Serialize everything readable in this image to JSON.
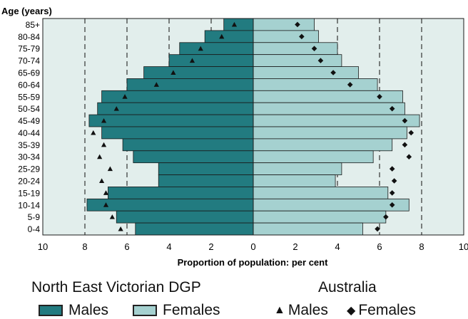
{
  "chart_data": {
    "type": "bar",
    "orientation": "horizontal",
    "ylabel": "Age (years)",
    "xlabel": "Proportion of population: per cent",
    "xlim": [
      -10,
      10
    ],
    "x_ticks": [
      -10,
      -8,
      -6,
      -4,
      -2,
      0,
      2,
      4,
      6,
      8,
      10
    ],
    "x_tick_labels": [
      "10",
      "8",
      "6",
      "4",
      "2",
      "0",
      "2",
      "4",
      "6",
      "8",
      "10"
    ],
    "gridlines_at": [
      -8,
      -6,
      -4,
      -2,
      2,
      4,
      6,
      8
    ],
    "categories": [
      "85+",
      "80-84",
      "75-79",
      "70-74",
      "65-69",
      "60-64",
      "55-59",
      "50-54",
      "45-49",
      "40-44",
      "35-39",
      "30-34",
      "25-29",
      "20-24",
      "15-19",
      "10-14",
      "5-9",
      "0-4"
    ],
    "series": [
      {
        "name": "Males",
        "group": "North East Victorian DGP",
        "color": "#227b80",
        "marker": "bar",
        "values": [
          1.4,
          2.3,
          3.5,
          4.0,
          5.2,
          6.0,
          7.2,
          7.4,
          7.8,
          7.2,
          6.2,
          5.7,
          4.5,
          4.5,
          6.9,
          7.9,
          6.5,
          5.6
        ]
      },
      {
        "name": "Females",
        "group": "North East Victorian DGP",
        "color": "#a5d1d0",
        "marker": "bar",
        "values": [
          2.9,
          3.1,
          4.0,
          4.2,
          5.0,
          5.9,
          7.1,
          7.2,
          7.9,
          7.3,
          6.6,
          5.7,
          4.2,
          3.9,
          6.4,
          7.4,
          6.3,
          5.2
        ]
      },
      {
        "name": "Males",
        "group": "Australia",
        "color": "#111111",
        "marker": "triangle",
        "values": [
          0.9,
          1.5,
          2.5,
          2.9,
          3.8,
          4.6,
          6.1,
          6.5,
          7.1,
          7.6,
          7.1,
          7.3,
          6.8,
          7.2,
          7.0,
          7.0,
          6.7,
          6.3
        ]
      },
      {
        "name": "Females",
        "group": "Australia",
        "color": "#111111",
        "marker": "diamond",
        "values": [
          2.1,
          2.3,
          2.9,
          3.2,
          3.8,
          4.6,
          6.0,
          6.6,
          7.2,
          7.5,
          7.2,
          7.4,
          6.6,
          6.7,
          6.6,
          6.6,
          6.3,
          5.9
        ]
      }
    ],
    "grid": true
  },
  "legend": {
    "dgp_title": "North East Victorian DGP",
    "aus_title": "Australia",
    "dgp_males": "Males",
    "dgp_females": "Females",
    "aus_males": "Males",
    "aus_females": "Females",
    "triangle_glyph": "▲",
    "diamond_glyph": "◆"
  }
}
